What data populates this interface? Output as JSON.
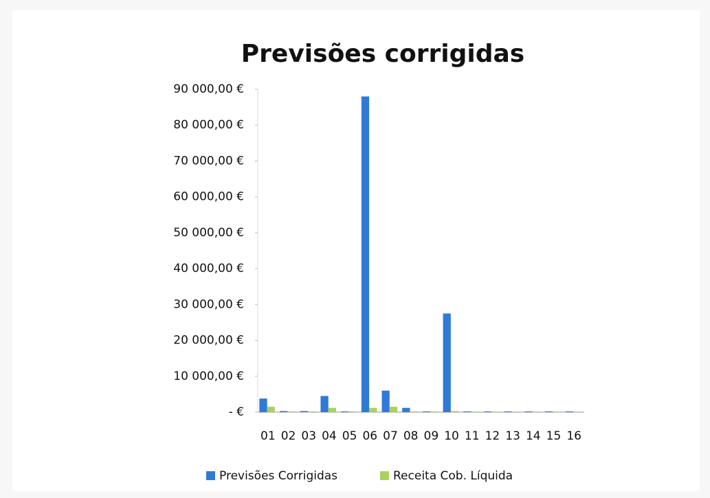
{
  "chart_data": {
    "type": "bar",
    "title": "Previsões corrigidas",
    "categories": [
      "01",
      "02",
      "03",
      "04",
      "05",
      "06",
      "07",
      "08",
      "09",
      "10",
      "11",
      "12",
      "13",
      "14",
      "15",
      "16"
    ],
    "series": [
      {
        "name": "Previsões Corrigidas",
        "color": "#2f7ad6",
        "values": [
          3800,
          300,
          300,
          4500,
          200,
          88000,
          6000,
          1200,
          200,
          27500,
          200,
          200,
          200,
          200,
          200,
          200
        ]
      },
      {
        "name": "Receita Cob. Líquida",
        "color": "#a9d35a",
        "values": [
          1500,
          200,
          200,
          1200,
          200,
          1200,
          1500,
          200,
          200,
          300,
          100,
          100,
          100,
          100,
          100,
          100
        ]
      }
    ],
    "ylim": [
      0,
      90000
    ],
    "yticks": [
      {
        "value": 0,
        "label": "-   €"
      },
      {
        "value": 10000,
        "label": "10 000,00 €"
      },
      {
        "value": 20000,
        "label": "20 000,00 €"
      },
      {
        "value": 30000,
        "label": "30 000,00 €"
      },
      {
        "value": 40000,
        "label": "40 000,00 €"
      },
      {
        "value": 50000,
        "label": "50 000,00 €"
      },
      {
        "value": 60000,
        "label": "60 000,00 €"
      },
      {
        "value": 70000,
        "label": "70 000,00 €"
      },
      {
        "value": 80000,
        "label": "80 000,00 €"
      },
      {
        "value": 90000,
        "label": "90 000,00 €"
      }
    ],
    "grid": false,
    "legend": "bottom"
  }
}
